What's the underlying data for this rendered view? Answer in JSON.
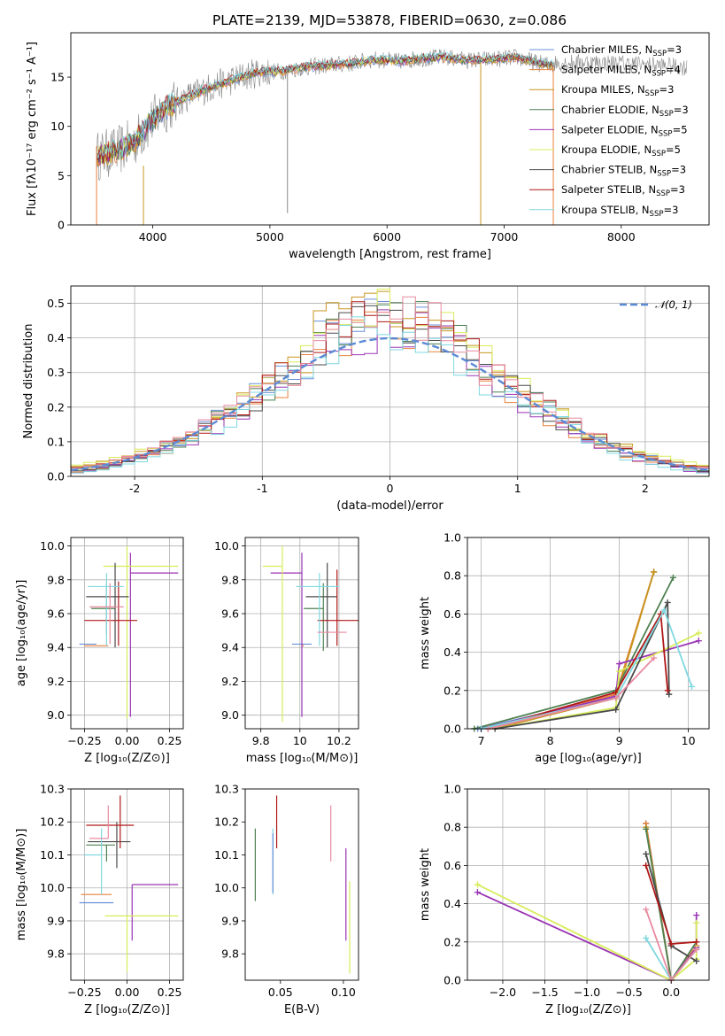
{
  "title": "PLATE=2139, MJD=53878, FIBERID=0630, z=0.086",
  "colors": {
    "Chabrier MILES": "#6a8fd8",
    "Salpeter MILES": "#e8823c",
    "Kroupa MILES": "#c8961e",
    "Chabrier ELODIE": "#4e8050",
    "Salpeter ELODIE": "#9a35b5",
    "Kroupa ELODIE": "#d8ec5a",
    "Chabrier STELIB": "#4a4a4a",
    "Salpeter STELIB": "#b01818",
    "Kroupa STELIB": "#7fd8e0",
    "Chabrier MILES alt": "#e88aa0"
  },
  "chart_data": [
    {
      "id": "spectrum",
      "type": "line",
      "xlabel": "wavelength [Angstrom, rest frame]",
      "ylabel": "Flux [fλ10⁻¹⁷ erg cm⁻² s⁻¹ A⁻¹]",
      "xlim": [
        3300,
        8750
      ],
      "ylim": [
        0,
        19.5
      ],
      "xticks": [
        4000,
        5000,
        6000,
        7000,
        8000
      ],
      "yticks": [
        0,
        5,
        10,
        15
      ],
      "grid": false,
      "legend_position": "right",
      "legend": [
        {
          "label": "Chabrier MILES, N",
          "sub": "SSP",
          "suffix": "=3",
          "color": "#6a8fd8"
        },
        {
          "label": "Salpeter MILES, N",
          "sub": "SSP",
          "suffix": "=4",
          "color": "#e8823c"
        },
        {
          "label": "Kroupa MILES, N",
          "sub": "SSP",
          "suffix": "=3",
          "color": "#c8961e"
        },
        {
          "label": "Chabrier ELODIE, N",
          "sub": "SSP",
          "suffix": "=3",
          "color": "#4e8050"
        },
        {
          "label": "Salpeter ELODIE, N",
          "sub": "SSP",
          "suffix": "=5",
          "color": "#9a35b5"
        },
        {
          "label": "Kroupa ELODIE, N",
          "sub": "SSP",
          "suffix": "=5",
          "color": "#d8ec5a"
        },
        {
          "label": "Chabrier STELIB, N",
          "sub": "SSP",
          "suffix": "=3",
          "color": "#4a4a4a"
        },
        {
          "label": "Salpeter STELIB, N",
          "sub": "SSP",
          "suffix": "=3",
          "color": "#b01818"
        },
        {
          "label": "Kroupa STELIB, N",
          "sub": "SSP",
          "suffix": "=3",
          "color": "#7fd8e0"
        }
      ],
      "continuum": {
        "x": [
          3520,
          3700,
          3850,
          3950,
          4100,
          4300,
          4500,
          4700,
          4900,
          5100,
          5300,
          5500,
          5700,
          5900,
          6100,
          6300,
          6500,
          6700,
          6900,
          7100,
          7300,
          7420
        ],
        "y": [
          7.0,
          7.5,
          8.5,
          10.0,
          11.8,
          13.0,
          14.0,
          14.8,
          15.5,
          15.6,
          16.0,
          16.2,
          16.4,
          16.8,
          16.6,
          16.9,
          17.0,
          16.7,
          16.8,
          17.0,
          16.4,
          16.2
        ]
      },
      "data_continuum": {
        "x": [
          7420,
          7700,
          8000,
          8300,
          8560
        ],
        "y": [
          16.4,
          16.5,
          16.4,
          16.2,
          16.0
        ]
      },
      "spikes": [
        {
          "x": 3520,
          "y0": 0,
          "y1": 8,
          "color": "#e8823c"
        },
        {
          "x": 3920,
          "y0": 0,
          "y1": 6,
          "color": "#c8961e"
        },
        {
          "x": 5150,
          "y0": 1.2,
          "y1": 16,
          "color": "#888888"
        },
        {
          "x": 6800,
          "y0": 0,
          "y1": 16.5,
          "color": "#c8961e"
        },
        {
          "x": 7420,
          "y0": 0,
          "y1": 16,
          "color": "#e8823c"
        }
      ]
    },
    {
      "id": "residuals",
      "type": "histogram",
      "xlabel": "(data-model)/error",
      "ylabel": "Normed distribution",
      "xlim": [
        -2.5,
        2.5
      ],
      "ylim": [
        0,
        0.55
      ],
      "xticks": [
        -2,
        -1,
        0,
        1,
        2
      ],
      "yticks": [
        0.0,
        0.1,
        0.2,
        0.3,
        0.4,
        0.5
      ],
      "grid": true,
      "legend_position": "top-right",
      "normal_label": "𝒩(0, 1)",
      "normal_color": "#5b8ad4",
      "bin_width": 0.1,
      "bins_start": -2.5,
      "histograms": [
        {
          "color": "#6a8fd8",
          "offset": 0.01
        },
        {
          "color": "#e8823c",
          "offset": -0.02
        },
        {
          "color": "#c8961e",
          "offset": 0.03
        },
        {
          "color": "#4e8050",
          "offset": 0.0
        },
        {
          "color": "#9a35b5",
          "offset": -0.03
        },
        {
          "color": "#d8ec5a",
          "offset": 0.04
        },
        {
          "color": "#4a4a4a",
          "offset": -0.01
        },
        {
          "color": "#b01818",
          "offset": 0.02
        },
        {
          "color": "#7fd8e0",
          "offset": -0.04
        },
        {
          "color": "#e88aa0",
          "offset": 0.015
        }
      ]
    },
    {
      "id": "age_vs_Z",
      "type": "errorbar",
      "xlabel": "Z [log₁₀(Z/Z⊙)]",
      "ylabel": "age  [log₁₀(age/yr)]",
      "xlim": [
        -0.33,
        0.33
      ],
      "ylim": [
        8.92,
        10.05
      ],
      "xticks": [
        -0.25,
        0.0,
        0.25
      ],
      "xticklabels": [
        "−0.25",
        "0.00",
        "0.25"
      ],
      "yticks": [
        9.0,
        9.2,
        9.4,
        9.6,
        9.8,
        10.0
      ],
      "grid": true,
      "points": [
        {
          "x": -0.18,
          "xerr": [
            0.1,
            0.0
          ],
          "y": 9.42,
          "yerr": [
            0.0,
            0.0
          ],
          "color": "#6a8fd8"
        },
        {
          "x": -0.17,
          "xerr": [
            0.08,
            0.06
          ],
          "y": 9.41,
          "yerr": [
            0.0,
            0.0
          ],
          "color": "#e8823c"
        },
        {
          "x": -0.12,
          "xerr": [
            0.09,
            0.05
          ],
          "y": 9.63,
          "yerr": [
            0.15,
            0.15
          ],
          "color": "#4e8050"
        },
        {
          "x": 0.02,
          "xerr": [
            0.0,
            0.28
          ],
          "y": 9.84,
          "yerr": [
            0.85,
            0.12
          ],
          "color": "#9a35b5"
        },
        {
          "x": 0.0,
          "xerr": [
            0.14,
            0.3
          ],
          "y": 9.88,
          "yerr": [
            0.9,
            0.12
          ],
          "color": "#d8ec5a"
        },
        {
          "x": -0.07,
          "xerr": [
            0.17,
            0.08
          ],
          "y": 9.7,
          "yerr": [
            0.3,
            0.2
          ],
          "color": "#4a4a4a"
        },
        {
          "x": -0.05,
          "xerr": [
            0.2,
            0.11
          ],
          "y": 9.56,
          "yerr": [
            0.15,
            0.23
          ],
          "color": "#b01818"
        },
        {
          "x": -0.12,
          "xerr": [
            0.11,
            0.1
          ],
          "y": 9.76,
          "yerr": [
            0.35,
            0.08
          ],
          "color": "#7fd8e0"
        },
        {
          "x": -0.1,
          "xerr": [
            0.12,
            0.08
          ],
          "y": 9.64,
          "yerr": [
            0.22,
            0.14
          ],
          "color": "#e88aa0"
        }
      ]
    },
    {
      "id": "age_vs_mass",
      "type": "errorbar",
      "xlabel": "mass [log₁₀(M/M⊙)]",
      "xlim": [
        9.72,
        10.3
      ],
      "ylim": [
        8.92,
        10.05
      ],
      "xticks": [
        9.8,
        10.0,
        10.2
      ],
      "yticks": [
        9.0,
        9.2,
        9.4,
        9.6,
        9.8,
        10.0
      ],
      "grid": true,
      "points": [
        {
          "x": 9.96,
          "xerr": [
            0.0,
            0.1
          ],
          "y": 9.42,
          "yerr": [
            0.0,
            0.0
          ],
          "color": "#6a8fd8"
        },
        {
          "x": 10.02,
          "xerr": [
            0.01,
            0.0
          ],
          "y": 9.41,
          "yerr": [
            0.0,
            0.0
          ],
          "color": "#e8823c"
        },
        {
          "x": 10.12,
          "xerr": [
            0.1,
            0.0
          ],
          "y": 9.63,
          "yerr": [
            0.25,
            0.15
          ],
          "color": "#4e8050"
        },
        {
          "x": 10.01,
          "xerr": [
            0.16,
            0.0
          ],
          "y": 9.84,
          "yerr": [
            0.85,
            0.12
          ],
          "color": "#9a35b5"
        },
        {
          "x": 9.91,
          "xerr": [
            0.1,
            0.0
          ],
          "y": 9.88,
          "yerr": [
            0.92,
            0.12
          ],
          "color": "#d8ec5a"
        },
        {
          "x": 10.14,
          "xerr": [
            0.11,
            0.05
          ],
          "y": 9.7,
          "yerr": [
            0.3,
            0.2
          ],
          "color": "#4a4a4a"
        },
        {
          "x": 10.19,
          "xerr": [
            0.1,
            0.11
          ],
          "y": 9.56,
          "yerr": [
            0.15,
            0.3
          ],
          "color": "#b01818"
        },
        {
          "x": 10.1,
          "xerr": [
            0.12,
            0.1
          ],
          "y": 9.76,
          "yerr": [
            0.35,
            0.08
          ],
          "color": "#7fd8e0"
        },
        {
          "x": 10.14,
          "xerr": [
            0.05,
            0.1
          ],
          "y": 9.49,
          "yerr": [
            0.0,
            0.0
          ],
          "color": "#e88aa0"
        }
      ]
    },
    {
      "id": "massweight_vs_age",
      "type": "line",
      "xlabel": "age  [log₁₀(age/yr)]",
      "ylabel": "mass weight",
      "xlim": [
        6.8,
        10.3
      ],
      "ylim": [
        0.0,
        1.0
      ],
      "xticks": [
        7,
        8,
        9,
        10
      ],
      "yticks": [
        0.0,
        0.2,
        0.4,
        0.6,
        0.8,
        1.0
      ],
      "grid": true,
      "series": [
        {
          "color": "#6a8fd8",
          "x": [
            6.95,
            8.95,
            9.5
          ],
          "y": [
            0.0,
            0.17,
            0.82
          ]
        },
        {
          "color": "#e8823c",
          "x": [
            7.1,
            8.95,
            9.5
          ],
          "y": [
            0.0,
            0.18,
            0.82
          ]
        },
        {
          "color": "#c8961e",
          "x": [
            7.2,
            8.95,
            9.5
          ],
          "y": [
            0.0,
            0.16,
            0.82
          ]
        },
        {
          "color": "#4e8050",
          "x": [
            6.9,
            8.95,
            9.78
          ],
          "y": [
            0.0,
            0.2,
            0.79
          ]
        },
        {
          "color": "#9a35b5",
          "x": [
            7.0,
            8.95,
            9.0,
            10.15
          ],
          "y": [
            0.0,
            0.17,
            0.34,
            0.46
          ]
        },
        {
          "color": "#d8ec5a",
          "x": [
            7.2,
            8.95,
            9.0,
            10.15
          ],
          "y": [
            0.0,
            0.11,
            0.3,
            0.5
          ]
        },
        {
          "color": "#4a4a4a",
          "x": [
            7.2,
            8.95,
            9.7,
            9.72
          ],
          "y": [
            0.0,
            0.1,
            0.66,
            0.18
          ]
        },
        {
          "color": "#b01818",
          "x": [
            7.1,
            8.95,
            9.6,
            9.7
          ],
          "y": [
            0.0,
            0.19,
            0.6,
            0.2
          ]
        },
        {
          "color": "#7fd8e0",
          "x": [
            7.0,
            8.95,
            9.65,
            10.05
          ],
          "y": [
            0.0,
            0.16,
            0.62,
            0.22
          ]
        },
        {
          "color": "#e88aa0",
          "x": [
            7.1,
            8.95,
            9.5
          ],
          "y": [
            0.0,
            0.16,
            0.37
          ]
        }
      ]
    },
    {
      "id": "mass_vs_Z",
      "type": "errorbar",
      "xlabel": "Z [log₁₀(Z/Z⊙)]",
      "ylabel": "mass [log₁₀(M/M⊙)]",
      "xlim": [
        -0.33,
        0.33
      ],
      "ylim": [
        9.72,
        10.3
      ],
      "xticks": [
        -0.25,
        0.0,
        0.25
      ],
      "xticklabels": [
        "−0.25",
        "0.00",
        "0.25"
      ],
      "yticks": [
        9.8,
        9.9,
        10.0,
        10.1,
        10.2,
        10.3
      ],
      "grid": true,
      "points": [
        {
          "x": -0.18,
          "xerr": [
            0.1,
            0.1
          ],
          "y": 9.955,
          "yerr": [
            0.0,
            0.0
          ],
          "color": "#6a8fd8"
        },
        {
          "x": -0.17,
          "xerr": [
            0.1,
            0.08
          ],
          "y": 9.98,
          "yerr": [
            0.0,
            0.0
          ],
          "color": "#e8823c"
        },
        {
          "x": -0.12,
          "xerr": [
            0.12,
            0.05
          ],
          "y": 10.13,
          "yerr": [
            0.05,
            0.0
          ],
          "color": "#4e8050"
        },
        {
          "x": 0.03,
          "xerr": [
            0.0,
            0.27
          ],
          "y": 10.01,
          "yerr": [
            0.17,
            0.0
          ],
          "color": "#9a35b5"
        },
        {
          "x": 0.0,
          "xerr": [
            0.13,
            0.3
          ],
          "y": 9.915,
          "yerr": [
            0.17,
            0.0
          ],
          "color": "#d8ec5a"
        },
        {
          "x": -0.06,
          "xerr": [
            0.17,
            0.08
          ],
          "y": 10.14,
          "yerr": [
            0.08,
            0.06
          ],
          "color": "#4a4a4a"
        },
        {
          "x": -0.04,
          "xerr": [
            0.2,
            0.08
          ],
          "y": 10.19,
          "yerr": [
            0.07,
            0.09
          ],
          "color": "#b01818"
        },
        {
          "x": -0.15,
          "xerr": [
            0.1,
            0.0
          ],
          "y": 10.1,
          "yerr": [
            0.12,
            0.08
          ],
          "color": "#7fd8e0"
        },
        {
          "x": -0.11,
          "xerr": [
            0.11,
            0.0
          ],
          "y": 10.15,
          "yerr": [
            0.0,
            0.1
          ],
          "color": "#e88aa0"
        }
      ]
    },
    {
      "id": "mass_vs_EBV",
      "type": "errorbar",
      "xlabel": "E(B-V)",
      "xlim": [
        0.022,
        0.112
      ],
      "ylim": [
        9.72,
        10.3
      ],
      "xticks": [
        0.05,
        0.1
      ],
      "xticklabels": [
        "0.05",
        "0.10"
      ],
      "yticks": [
        9.8,
        9.9,
        10.0,
        10.1,
        10.2,
        10.3
      ],
      "grid": false,
      "points": [
        {
          "x": 0.03,
          "y": 10.07,
          "yerr": [
            0.11,
            0.11
          ],
          "color": "#4e8050"
        },
        {
          "x": 0.044,
          "y": 10.08,
          "yerr": [
            0.1,
            0.1
          ],
          "color": "#7fd8e0"
        },
        {
          "x": 0.044,
          "y": 10.075,
          "yerr": [
            0.09,
            0.09
          ],
          "color": "#6a8fd8"
        },
        {
          "x": 0.047,
          "y": 10.2,
          "yerr": [
            0.08,
            0.08
          ],
          "color": "#b01818"
        },
        {
          "x": 0.09,
          "y": 10.165,
          "yerr": [
            0.085,
            0.085
          ],
          "color": "#e88aa0"
        },
        {
          "x": 0.102,
          "y": 9.98,
          "yerr": [
            0.14,
            0.14
          ],
          "color": "#9a35b5"
        },
        {
          "x": 0.105,
          "y": 9.88,
          "yerr": [
            0.14,
            0.14
          ],
          "color": "#d8ec5a"
        }
      ]
    },
    {
      "id": "massweight_vs_Z",
      "type": "line",
      "xlabel": "Z [log₁₀(Z/Z⊙)]",
      "ylabel": "mass weight",
      "xlim": [
        -2.42,
        0.45
      ],
      "ylim": [
        0.0,
        1.0
      ],
      "xticks": [
        -2.0,
        -1.5,
        -1.0,
        -0.5,
        0.0
      ],
      "xticklabels": [
        "−2.0",
        "−1.5",
        "−1.0",
        "−0.5",
        "0.0"
      ],
      "yticks": [
        0.0,
        0.2,
        0.4,
        0.6,
        0.8,
        1.0
      ],
      "grid": true,
      "series": [
        {
          "color": "#6a8fd8",
          "x": [
            -0.3,
            0.0,
            0.3
          ],
          "y": [
            0.82,
            0.0,
            0.17
          ]
        },
        {
          "color": "#e8823c",
          "x": [
            -0.3,
            0.0,
            0.3
          ],
          "y": [
            0.82,
            0.0,
            0.18
          ]
        },
        {
          "color": "#c8961e",
          "x": [
            -0.3,
            0.0,
            0.3
          ],
          "y": [
            0.8,
            0.0,
            0.16
          ]
        },
        {
          "color": "#4e8050",
          "x": [
            -0.3,
            0.0,
            0.3
          ],
          "y": [
            0.79,
            0.0,
            0.2
          ]
        },
        {
          "color": "#9a35b5",
          "x": [
            -2.3,
            0.0,
            0.3,
            0.3
          ],
          "y": [
            0.46,
            0.0,
            0.17,
            0.34
          ]
        },
        {
          "color": "#d8ec5a",
          "x": [
            -2.3,
            0.0,
            0.3,
            0.3
          ],
          "y": [
            0.5,
            0.0,
            0.11,
            0.3
          ]
        },
        {
          "color": "#4a4a4a",
          "x": [
            -0.3,
            0.0,
            0.3
          ],
          "y": [
            0.66,
            0.18,
            0.1
          ]
        },
        {
          "color": "#b01818",
          "x": [
            -0.3,
            0.0,
            0.3
          ],
          "y": [
            0.6,
            0.19,
            0.2
          ]
        },
        {
          "color": "#7fd8e0",
          "x": [
            -0.3,
            0.0,
            0.3
          ],
          "y": [
            0.22,
            0.0,
            0.16
          ]
        },
        {
          "color": "#e88aa0",
          "x": [
            -0.3,
            0.0,
            0.3
          ],
          "y": [
            0.37,
            0.0,
            0.16
          ]
        }
      ]
    }
  ]
}
